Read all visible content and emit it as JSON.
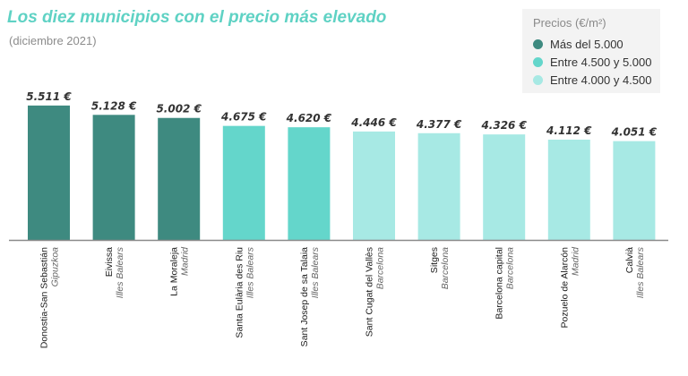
{
  "chart_data": {
    "type": "bar",
    "title": "Los diez municipios con el precio más elevado",
    "subtitle": "(diciembre 2021)",
    "legend": {
      "title": "Precios (€/m²)",
      "placement": "top-right",
      "items": [
        {
          "label": "Más del 5.000",
          "color": "#3e8a80"
        },
        {
          "label": "Entre 4.500 y 5.000",
          "color": "#64d6cb"
        },
        {
          "label": "Entre 4.000 y 4.500",
          "color": "#a7e9e4"
        }
      ]
    },
    "categories": [
      {
        "name": "Donostia-San Sebastián",
        "region": "Gipuzkoa"
      },
      {
        "name": "Eivissa",
        "region": "Illes Balears"
      },
      {
        "name": "La Moraleja",
        "region": "Madrid"
      },
      {
        "name": "Santa Eulària des Riu",
        "region": "Illes Balears"
      },
      {
        "name": "Sant Josep de sa Talaia",
        "region": "Illes Balears"
      },
      {
        "name": "Sant Cugat del Vallès",
        "region": "Barcelona"
      },
      {
        "name": "Sitges",
        "region": "Barcelona"
      },
      {
        "name": "Barcelona capital",
        "region": "Barcelona"
      },
      {
        "name": "Pozuelo de Alarcón",
        "region": "Madrid"
      },
      {
        "name": "Calvià",
        "region": "Illes Balears"
      }
    ],
    "values": [
      5511,
      5128,
      5002,
      4675,
      4620,
      4446,
      4377,
      4326,
      4112,
      4051
    ],
    "value_labels": [
      "5.511 €",
      "5.128 €",
      "5.002 €",
      "4.675 €",
      "4.620 €",
      "4.446 €",
      "4.377 €",
      "4.326 €",
      "4.112 €",
      "4.051 €"
    ],
    "color_group": [
      0,
      0,
      0,
      1,
      1,
      2,
      2,
      2,
      2,
      2
    ],
    "ylim": [
      0,
      5800
    ],
    "grid": false,
    "axis_color": "#8a8a8a"
  }
}
